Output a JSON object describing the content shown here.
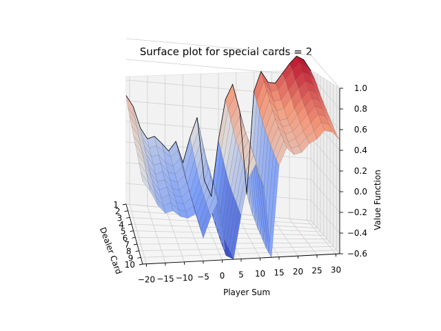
{
  "chart_data": {
    "type": "surface",
    "title": "Surface plot for special cards = 2",
    "xlabel": "Player Sum",
    "ylabel": "Dealer Card",
    "zlabel": "Value Function",
    "x_ticks": [
      "−20",
      "−15",
      "−10",
      "−5",
      "0",
      "5",
      "10",
      "15",
      "20",
      "25",
      "30"
    ],
    "y_ticks": [
      "1",
      "2",
      "3",
      "4",
      "5",
      "6",
      "7",
      "8",
      "9",
      "10"
    ],
    "z_ticks": [
      "1.0",
      "0.8",
      "0.6",
      "0.4",
      "0.2",
      "0.0",
      "−0.2",
      "−0.4",
      "−0.6"
    ],
    "xlim": [
      -21,
      31
    ],
    "ylim": [
      1,
      10
    ],
    "zlim": [
      -0.6,
      1.0
    ],
    "colormap": "coolwarm",
    "colormap_colors": [
      "#3b4cc0",
      "#b40426"
    ],
    "player_sums": [
      -21,
      -19,
      -17,
      -15,
      -13,
      -11,
      -9,
      -7,
      -5,
      -3,
      -1,
      1,
      3,
      5,
      7,
      9,
      11,
      13,
      15,
      17,
      19,
      21,
      23,
      25,
      27,
      29,
      31
    ],
    "dealer_cards": [
      1,
      2,
      3,
      4,
      5,
      6,
      7,
      8,
      9,
      10
    ],
    "value_function": [
      [
        0.45,
        0.35,
        0.15,
        0.05,
        0.08,
        0.02,
        -0.05,
        0.05,
        -0.15,
        0.1,
        0.3,
        -0.3,
        -0.45,
        0.1,
        0.5,
        0.65,
        0.4,
        -0.4,
        0.6,
        0.8,
        0.7,
        0.7,
        0.8,
        0.9,
        0.98,
        0.95,
        0.85
      ],
      [
        0.4,
        0.3,
        0.12,
        0.02,
        0.05,
        0.0,
        -0.05,
        0.02,
        -0.2,
        0.05,
        0.25,
        -0.35,
        -0.5,
        0.05,
        0.45,
        0.6,
        0.35,
        -0.45,
        0.55,
        0.75,
        0.65,
        0.68,
        0.78,
        0.88,
        0.95,
        0.92,
        0.82
      ],
      [
        0.38,
        0.28,
        0.1,
        0.0,
        0.02,
        -0.05,
        -0.08,
        0.0,
        -0.25,
        0.0,
        0.2,
        -0.4,
        -0.55,
        0.0,
        0.4,
        0.55,
        0.3,
        -0.5,
        0.5,
        0.7,
        0.6,
        0.62,
        0.72,
        0.82,
        0.9,
        0.88,
        0.78
      ],
      [
        0.35,
        0.25,
        0.08,
        -0.02,
        0.0,
        -0.08,
        -0.1,
        -0.02,
        -0.28,
        -0.05,
        0.15,
        -0.45,
        -0.58,
        -0.05,
        0.35,
        0.5,
        0.25,
        -0.52,
        0.45,
        0.65,
        0.55,
        0.58,
        0.68,
        0.78,
        0.85,
        0.82,
        0.72
      ],
      [
        0.32,
        0.22,
        0.05,
        -0.05,
        -0.02,
        -0.1,
        -0.12,
        -0.05,
        -0.3,
        -0.1,
        0.1,
        -0.48,
        -0.6,
        -0.1,
        0.3,
        0.45,
        0.2,
        -0.55,
        0.4,
        0.6,
        0.5,
        0.52,
        0.62,
        0.72,
        0.8,
        0.78,
        0.68
      ],
      [
        0.3,
        0.2,
        0.03,
        -0.06,
        -0.04,
        -0.12,
        -0.14,
        -0.06,
        -0.32,
        -0.12,
        0.08,
        -0.5,
        -0.6,
        -0.12,
        0.28,
        0.42,
        0.18,
        -0.56,
        0.38,
        0.56,
        0.48,
        0.5,
        0.6,
        0.68,
        0.76,
        0.74,
        0.64
      ],
      [
        0.28,
        0.18,
        0.02,
        -0.08,
        -0.05,
        -0.13,
        -0.15,
        -0.08,
        -0.33,
        -0.14,
        0.05,
        -0.52,
        -0.6,
        -0.14,
        0.25,
        0.4,
        0.15,
        -0.58,
        0.35,
        0.52,
        0.45,
        0.48,
        0.56,
        0.64,
        0.72,
        0.7,
        0.6
      ],
      [
        0.25,
        0.15,
        0.0,
        -0.1,
        -0.06,
        -0.14,
        -0.16,
        -0.1,
        -0.35,
        -0.15,
        0.03,
        -0.54,
        -0.6,
        -0.15,
        0.22,
        0.38,
        0.12,
        -0.6,
        0.32,
        0.5,
        0.42,
        0.45,
        0.52,
        0.6,
        0.68,
        0.66,
        0.56
      ],
      [
        0.22,
        0.12,
        -0.02,
        -0.11,
        -0.08,
        -0.15,
        -0.17,
        -0.12,
        -0.36,
        -0.17,
        0.0,
        -0.55,
        -0.6,
        -0.17,
        0.2,
        0.35,
        0.1,
        -0.6,
        0.3,
        0.48,
        0.4,
        0.42,
        0.5,
        0.56,
        0.64,
        0.62,
        0.52
      ],
      [
        0.2,
        0.1,
        -0.04,
        -0.12,
        -0.1,
        -0.16,
        -0.18,
        -0.14,
        -0.38,
        -0.18,
        -0.02,
        -0.56,
        -0.6,
        -0.18,
        0.18,
        0.32,
        0.08,
        -0.6,
        0.28,
        0.45,
        0.38,
        0.4,
        0.48,
        0.52,
        0.6,
        0.58,
        0.5
      ]
    ]
  }
}
